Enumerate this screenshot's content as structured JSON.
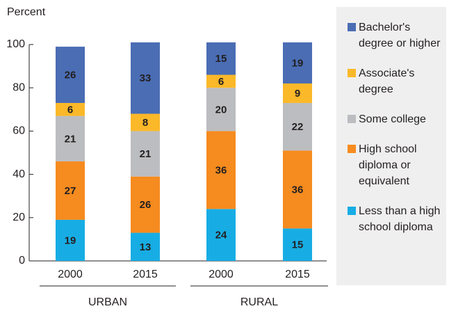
{
  "chart_data": {
    "type": "stacked_bar",
    "y_label": "Percent",
    "categories": [
      "2000",
      "2015",
      "2000",
      "2015"
    ],
    "groups": [
      "URBAN",
      "RURAL"
    ],
    "series": [
      {
        "name": "Less than a high school diploma",
        "color": "#17ade4",
        "values": [
          19,
          13,
          24,
          15
        ]
      },
      {
        "name": "High school diploma or equivalent",
        "color": "#f68b1f",
        "values": [
          27,
          26,
          36,
          36
        ]
      },
      {
        "name": "Some college",
        "color": "#bcbdc0",
        "values": [
          21,
          21,
          20,
          22
        ]
      },
      {
        "name": "Associate's degree",
        "color": "#fbb829",
        "values": [
          6,
          8,
          6,
          9
        ]
      },
      {
        "name": "Bachelor's degree or higher",
        "color": "#4a6db4",
        "values": [
          26,
          33,
          15,
          19
        ]
      }
    ],
    "ylim": [
      0,
      100
    ],
    "yticks": [
      0,
      20,
      40,
      60,
      80,
      100
    ]
  }
}
